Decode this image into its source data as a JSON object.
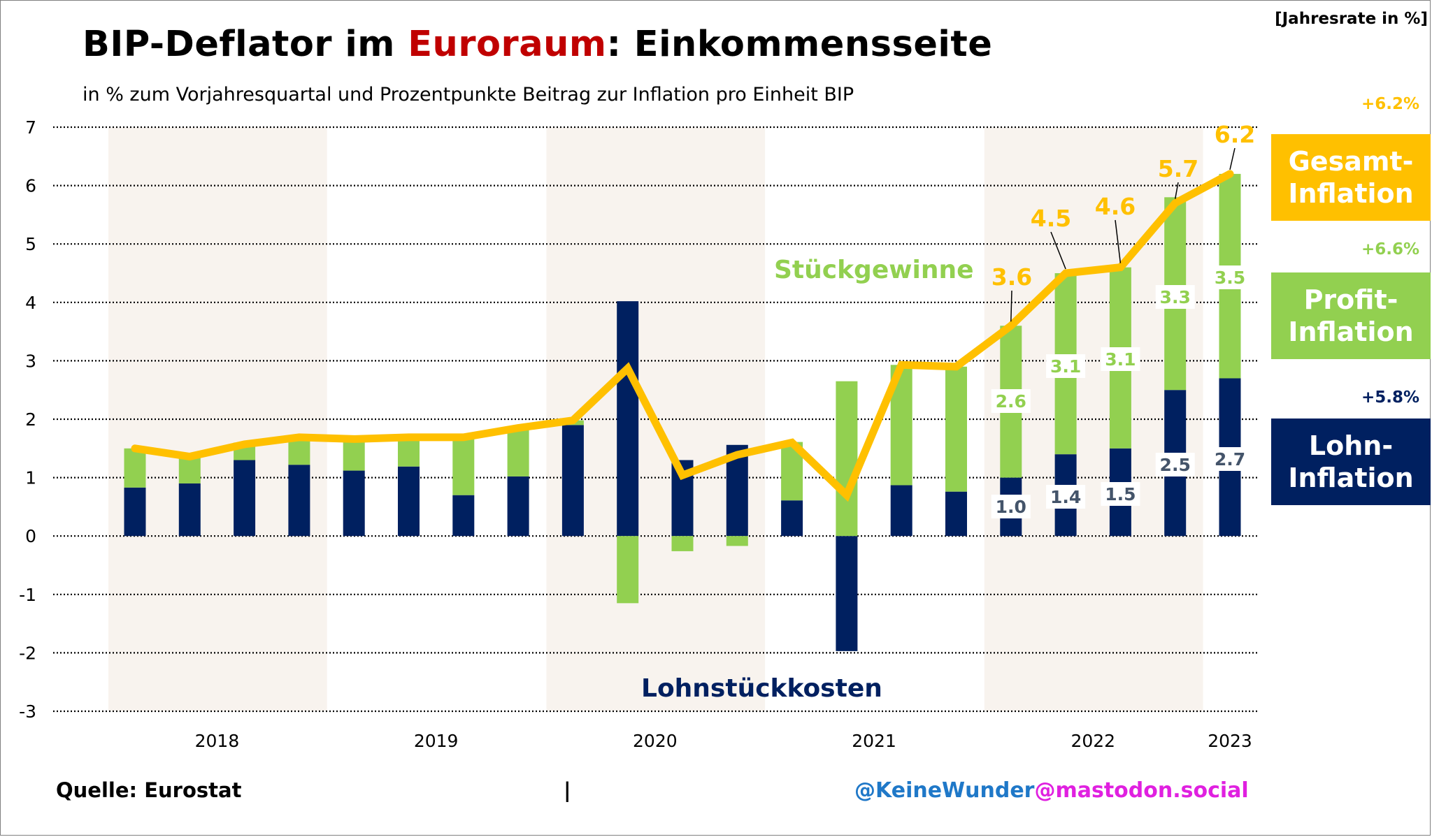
{
  "title": {
    "part1": "BIP-Deflator im ",
    "highlight": "Euroraum",
    "part2": ": Einkommensseite"
  },
  "subtitle": "in % zum Vorjahresquartal und Prozentpunkte Beitrag zur Inflation pro Einheit BIP",
  "unit_note": "[Jahresrate in %]",
  "side_panel": {
    "gesamt": {
      "pct": "+6.2%",
      "line1": "Gesamt-",
      "line2": "Inflation",
      "color": "#FFC000"
    },
    "profit": {
      "pct": "+6.6%",
      "line1": "Profit-",
      "line2": "Inflation",
      "color": "#92D050"
    },
    "lohn": {
      "pct": "+5.8%",
      "line1": "Lohn-",
      "line2": "Inflation",
      "color": "#002060"
    }
  },
  "footer": {
    "source": "Quelle: Eurostat",
    "separator": "|",
    "handle_user": "@KeineWunder",
    "handle_server": "@mastodon.social",
    "handle_user_color": "#1F78C8",
    "handle_server_color": "#E020E0"
  },
  "chart_data": {
    "type": "bar",
    "stacked": true,
    "title": "BIP-Deflator im Euroraum: Einkommensseite",
    "ylim": [
      -3,
      7
    ],
    "yticks": [
      "7",
      "6",
      "5",
      "4",
      "3",
      "2",
      "1",
      "0",
      "-1",
      "-2",
      "-3"
    ],
    "year_labels": [
      "2018",
      "2019",
      "2020",
      "2021",
      "2022",
      "2023"
    ],
    "categories": [
      "2018Q1",
      "2018Q2",
      "2018Q3",
      "2018Q4",
      "2019Q1",
      "2019Q2",
      "2019Q3",
      "2019Q4",
      "2020Q1",
      "2020Q2",
      "2020Q3",
      "2020Q4",
      "2021Q1",
      "2021Q2",
      "2021Q3",
      "2021Q4",
      "2022Q1",
      "2022Q2",
      "2022Q3",
      "2022Q4",
      "2023Q1"
    ],
    "series": [
      {
        "name": "Lohnstückkosten",
        "color": "#002060",
        "values": [
          0.83,
          0.9,
          1.3,
          1.22,
          1.12,
          1.19,
          0.7,
          1.02,
          1.9,
          4.02,
          1.3,
          1.56,
          0.61,
          -1.97,
          0.87,
          0.76,
          1.0,
          1.4,
          1.5,
          2.5,
          2.7
        ]
      },
      {
        "name": "Stückgewinne",
        "color": "#92D050",
        "values": [
          0.67,
          0.45,
          0.3,
          0.47,
          0.53,
          0.51,
          1.0,
          0.83,
          0.08,
          -1.15,
          -0.26,
          -0.17,
          1.0,
          2.65,
          2.06,
          2.14,
          2.6,
          3.1,
          3.1,
          3.3,
          3.5
        ]
      },
      {
        "name": "BIP-Deflator",
        "type": "line",
        "color": "#FFC000",
        "values": [
          1.5,
          1.36,
          1.57,
          1.69,
          1.66,
          1.69,
          1.69,
          1.85,
          1.98,
          2.87,
          1.04,
          1.39,
          1.6,
          0.7,
          2.93,
          2.9,
          3.6,
          4.5,
          4.6,
          5.7,
          6.2
        ]
      }
    ],
    "data_labels": {
      "total": [
        "3.6",
        "4.5",
        "4.6",
        "5.7",
        "6.2"
      ],
      "profit": [
        "2.6",
        "3.1",
        "3.1",
        "3.3",
        "3.5"
      ],
      "wage": [
        "1.0",
        "1.4",
        "1.5",
        "2.5",
        "2.7"
      ]
    },
    "label_start_index": 16,
    "annotations": {
      "profit": "Stückgewinne",
      "wage": "Lohnstückkosten"
    }
  }
}
